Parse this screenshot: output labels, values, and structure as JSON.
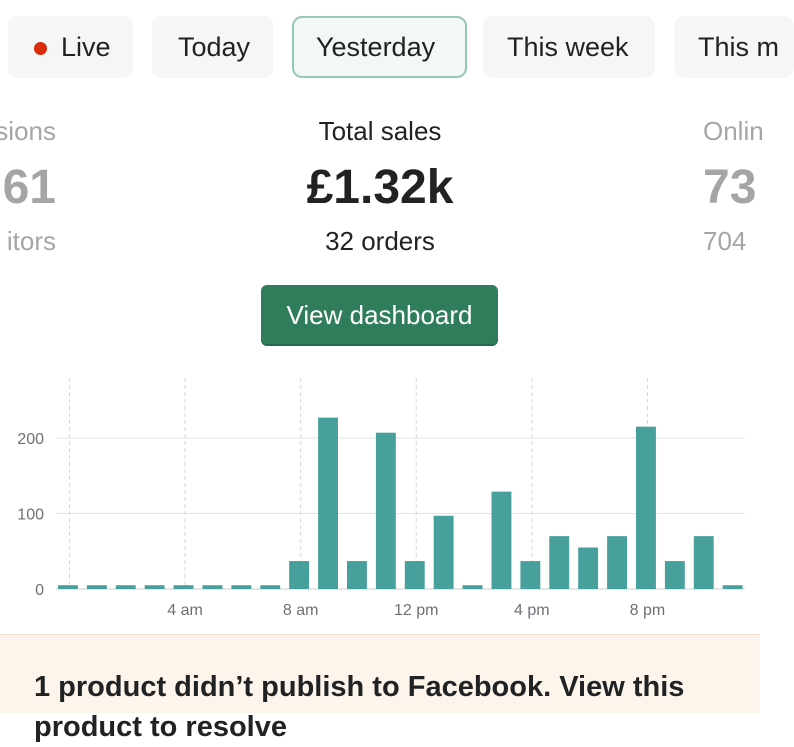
{
  "tabs": [
    {
      "label": "Live",
      "selected": false,
      "dot_color": "#d82c0d"
    },
    {
      "label": "Today",
      "selected": false
    },
    {
      "label": "Yesterday",
      "selected": true
    },
    {
      "label": "This week",
      "selected": false
    },
    {
      "label": "This m",
      "selected": false
    }
  ],
  "stats": {
    "left": {
      "title": "sions",
      "value": "61",
      "sub": "itors"
    },
    "center": {
      "title": "Total sales",
      "value": "£1.32k",
      "sub": "32 orders"
    },
    "right": {
      "title": "Onlin",
      "value": "73",
      "sub": "704"
    }
  },
  "dashboard_button": {
    "label": "View dashboard"
  },
  "chart_data": {
    "type": "bar",
    "color": "#47a09c",
    "x": [
      0,
      1,
      2,
      3,
      4,
      5,
      6,
      7,
      8,
      9,
      10,
      11,
      12,
      13,
      14,
      15,
      16,
      17,
      18,
      19,
      20,
      21,
      22,
      23
    ],
    "values": [
      5,
      5,
      5,
      5,
      5,
      5,
      5,
      5,
      37,
      227,
      37,
      207,
      37,
      97,
      5,
      129,
      37,
      70,
      55,
      70,
      215,
      37,
      70,
      5
    ],
    "y_ticks": [
      0,
      100,
      200
    ],
    "ylim": [
      0,
      280
    ],
    "x_ticks": [
      {
        "at": 4,
        "label": "4 am"
      },
      {
        "at": 8,
        "label": "8 am"
      },
      {
        "at": 12,
        "label": "12 pm"
      },
      {
        "at": 16,
        "label": "4 pm"
      },
      {
        "at": 20,
        "label": "8 pm"
      }
    ],
    "vertical_grid_at": [
      0,
      4,
      8,
      12,
      16,
      20
    ],
    "grid": true
  },
  "banner": {
    "text": "1 product didn’t publish to Facebook. View this product to resolve"
  }
}
